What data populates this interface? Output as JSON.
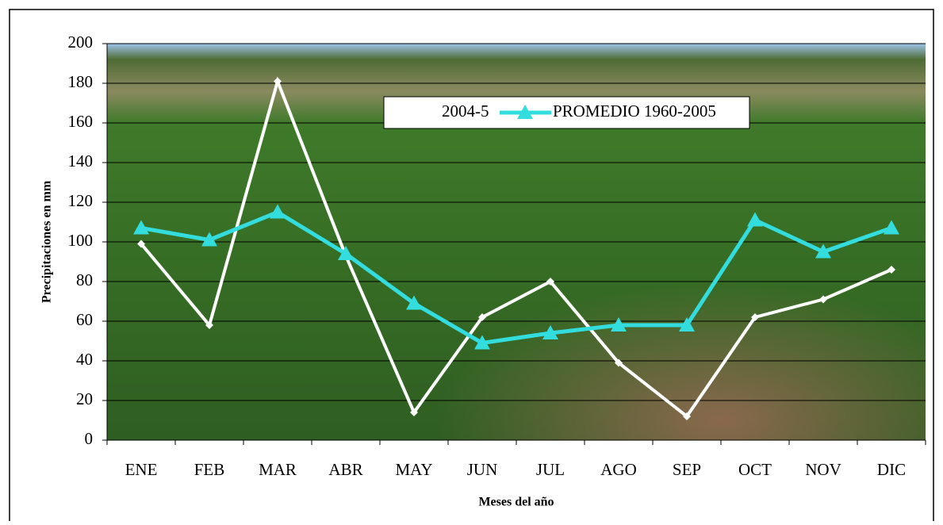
{
  "chart_data": {
    "type": "line",
    "x_label": "Meses del año",
    "y_label": "Precipitaciones en mm",
    "categories": [
      "ENE",
      "FEB",
      "MAR",
      "ABR",
      "MAY",
      "JUN",
      "JUL",
      "AGO",
      "SEP",
      "OCT",
      "NOV",
      "DIC"
    ],
    "series": [
      {
        "name": "2004-5",
        "color": "#ffffff",
        "marker": "diamond",
        "values": [
          99,
          58,
          181,
          93,
          14,
          62,
          80,
          39,
          12,
          62,
          71,
          86
        ]
      },
      {
        "name": "PROMEDIO 1960-2005",
        "color": "#33dddd",
        "marker": "triangle",
        "values": [
          107,
          101,
          115,
          94,
          69,
          49,
          54,
          58,
          58,
          111,
          95,
          107
        ]
      }
    ],
    "ylim": [
      0,
      200
    ],
    "yticks": [
      0,
      20,
      40,
      60,
      80,
      100,
      120,
      140,
      160,
      180,
      200
    ],
    "grid": true
  }
}
